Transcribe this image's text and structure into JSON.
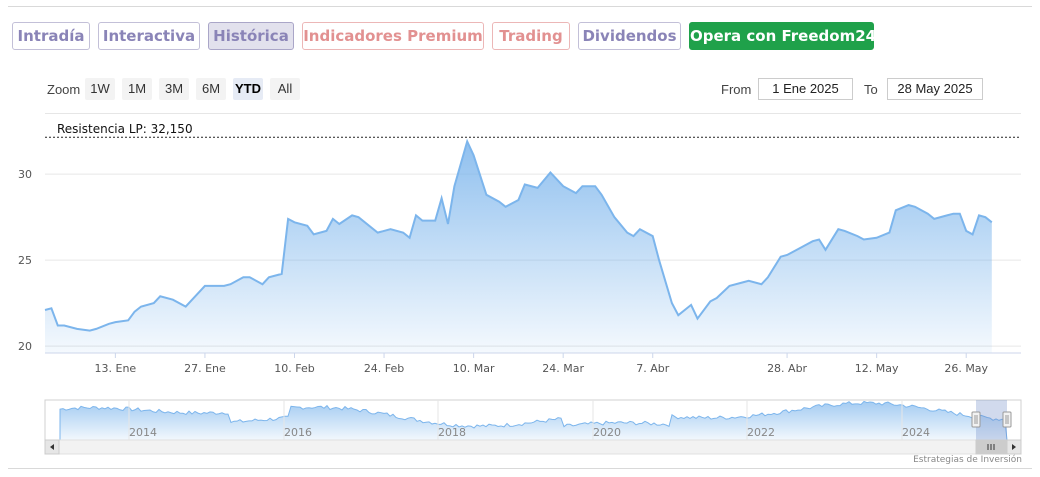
{
  "tabs": [
    {
      "label": "Intradía",
      "style": "normal"
    },
    {
      "label": "Interactiva",
      "style": "normal"
    },
    {
      "label": "Histórica",
      "style": "active"
    },
    {
      "label": "Indicadores Premium",
      "style": "premium"
    },
    {
      "label": "Trading",
      "style": "premium"
    },
    {
      "label": "Dividendos",
      "style": "normal"
    },
    {
      "label": "Opera con Freedom24",
      "style": "cta"
    }
  ],
  "zoom": {
    "label": "Zoom",
    "buttons": [
      "1W",
      "1M",
      "3M",
      "6M",
      "YTD",
      "All"
    ],
    "selected": "YTD"
  },
  "range": {
    "from_label": "From",
    "from_value": "1 Ene 2025",
    "to_label": "To",
    "to_value": "28 May 2025"
  },
  "credit": "Estrategias de Inversión",
  "colors": {
    "line": "#7cb5ec",
    "cta": "#1fa14a",
    "tab_text": "#8a84b7",
    "premium_text": "#e29191"
  },
  "chart_data": {
    "type": "area",
    "title": "",
    "xlabel": "",
    "ylabel": "",
    "ylim": [
      19.6,
      33.5
    ],
    "yticks": [
      20,
      25,
      30
    ],
    "x_start": "2025-01-02",
    "x_end": "2025-05-28",
    "xtick_labels": [
      {
        "date": "2025-01-13",
        "label": "13. Ene"
      },
      {
        "date": "2025-01-27",
        "label": "27. Ene"
      },
      {
        "date": "2025-02-10",
        "label": "10. Feb"
      },
      {
        "date": "2025-02-24",
        "label": "24. Feb"
      },
      {
        "date": "2025-03-10",
        "label": "10. Mar"
      },
      {
        "date": "2025-03-24",
        "label": "24. Mar"
      },
      {
        "date": "2025-04-07",
        "label": "7. Abr"
      },
      {
        "date": "2025-04-28",
        "label": "28. Abr"
      },
      {
        "date": "2025-05-12",
        "label": "12. May"
      },
      {
        "date": "2025-05-26",
        "label": "26. May"
      }
    ],
    "resistance": {
      "label": "Resistencia LP: 32,150",
      "value": 32.15
    },
    "series": [
      {
        "values": [
          [
            "2025-01-02",
            22.1
          ],
          [
            "2025-01-03",
            22.2
          ],
          [
            "2025-01-04",
            21.2
          ],
          [
            "2025-01-05",
            21.2
          ],
          [
            "2025-01-07",
            21.0
          ],
          [
            "2025-01-09",
            20.9
          ],
          [
            "2025-01-10",
            21.0
          ],
          [
            "2025-01-12",
            21.3
          ],
          [
            "2025-01-13",
            21.4
          ],
          [
            "2025-01-15",
            21.5
          ],
          [
            "2025-01-16",
            22.0
          ],
          [
            "2025-01-17",
            22.3
          ],
          [
            "2025-01-19",
            22.5
          ],
          [
            "2025-01-20",
            22.9
          ],
          [
            "2025-01-22",
            22.7
          ],
          [
            "2025-01-24",
            22.3
          ],
          [
            "2025-01-25",
            22.7
          ],
          [
            "2025-01-27",
            23.5
          ],
          [
            "2025-01-28",
            23.5
          ],
          [
            "2025-01-30",
            23.5
          ],
          [
            "2025-01-31",
            23.6
          ],
          [
            "2025-02-02",
            24.0
          ],
          [
            "2025-02-03",
            24.0
          ],
          [
            "2025-02-05",
            23.6
          ],
          [
            "2025-02-06",
            24.0
          ],
          [
            "2025-02-08",
            24.2
          ],
          [
            "2025-02-09",
            27.4
          ],
          [
            "2025-02-10",
            27.2
          ],
          [
            "2025-02-12",
            27.0
          ],
          [
            "2025-02-13",
            26.5
          ],
          [
            "2025-02-15",
            26.7
          ],
          [
            "2025-02-16",
            27.4
          ],
          [
            "2025-02-17",
            27.1
          ],
          [
            "2025-02-19",
            27.6
          ],
          [
            "2025-02-20",
            27.5
          ],
          [
            "2025-02-23",
            26.6
          ],
          [
            "2025-02-25",
            26.8
          ],
          [
            "2025-02-27",
            26.6
          ],
          [
            "2025-02-28",
            26.3
          ],
          [
            "2025-03-01",
            27.6
          ],
          [
            "2025-03-02",
            27.3
          ],
          [
            "2025-03-04",
            27.3
          ],
          [
            "2025-03-05",
            28.6
          ],
          [
            "2025-03-06",
            27.1
          ],
          [
            "2025-03-07",
            29.3
          ],
          [
            "2025-03-09",
            31.9
          ],
          [
            "2025-03-10",
            31.1
          ],
          [
            "2025-03-12",
            28.8
          ],
          [
            "2025-03-14",
            28.4
          ],
          [
            "2025-03-15",
            28.1
          ],
          [
            "2025-03-17",
            28.5
          ],
          [
            "2025-03-18",
            29.4
          ],
          [
            "2025-03-20",
            29.2
          ],
          [
            "2025-03-22",
            30.1
          ],
          [
            "2025-03-24",
            29.3
          ],
          [
            "2025-03-26",
            28.9
          ],
          [
            "2025-03-27",
            29.3
          ],
          [
            "2025-03-29",
            29.3
          ],
          [
            "2025-03-30",
            28.8
          ],
          [
            "2025-04-01",
            27.5
          ],
          [
            "2025-04-03",
            26.6
          ],
          [
            "2025-04-04",
            26.4
          ],
          [
            "2025-04-05",
            26.8
          ],
          [
            "2025-04-07",
            26.4
          ],
          [
            "2025-04-08",
            25.0
          ],
          [
            "2025-04-10",
            22.5
          ],
          [
            "2025-04-11",
            21.8
          ],
          [
            "2025-04-13",
            22.4
          ],
          [
            "2025-04-14",
            21.6
          ],
          [
            "2025-04-16",
            22.6
          ],
          [
            "2025-04-17",
            22.8
          ],
          [
            "2025-04-19",
            23.5
          ],
          [
            "2025-04-21",
            23.7
          ],
          [
            "2025-04-22",
            23.8
          ],
          [
            "2025-04-24",
            23.6
          ],
          [
            "2025-04-25",
            24.0
          ],
          [
            "2025-04-27",
            25.2
          ],
          [
            "2025-04-28",
            25.3
          ],
          [
            "2025-04-30",
            25.7
          ],
          [
            "2025-05-02",
            26.1
          ],
          [
            "2025-05-03",
            26.2
          ],
          [
            "2025-05-04",
            25.6
          ],
          [
            "2025-05-06",
            26.8
          ],
          [
            "2025-05-07",
            26.7
          ],
          [
            "2025-05-09",
            26.4
          ],
          [
            "2025-05-10",
            26.2
          ],
          [
            "2025-05-12",
            26.3
          ],
          [
            "2025-05-14",
            26.6
          ],
          [
            "2025-05-15",
            27.9
          ],
          [
            "2025-05-17",
            28.2
          ],
          [
            "2025-05-18",
            28.1
          ],
          [
            "2025-05-20",
            27.7
          ],
          [
            "2025-05-21",
            27.4
          ],
          [
            "2025-05-23",
            27.6
          ],
          [
            "2025-05-24",
            27.7
          ],
          [
            "2025-05-25",
            27.7
          ],
          [
            "2025-05-26",
            26.7
          ],
          [
            "2025-05-27",
            26.5
          ],
          [
            "2025-05-28",
            27.6
          ],
          [
            "2025-05-29",
            27.5
          ],
          [
            "2025-05-30",
            27.2
          ]
        ]
      }
    ],
    "navigator": {
      "year_labels": [
        "2014",
        "2016",
        "2018",
        "2020",
        "2022",
        "2024"
      ]
    }
  }
}
